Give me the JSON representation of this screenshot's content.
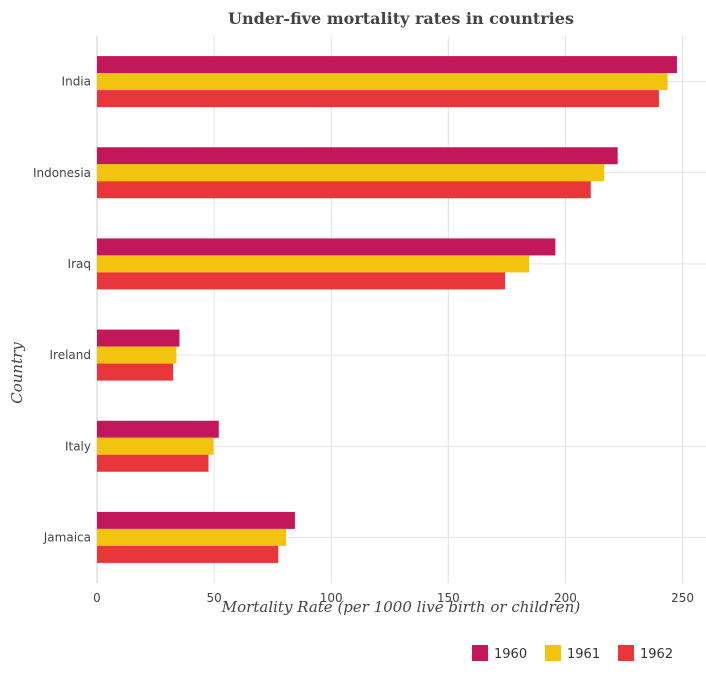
{
  "chart_data": {
    "type": "bar",
    "orientation": "horizontal",
    "title": "Under-five mortality rates in countries",
    "xlabel": "Mortality Rate (per 1000 live birth or children)",
    "ylabel": "Country",
    "xlim": [
      0,
      260
    ],
    "xticks": [
      "0",
      "50",
      "100",
      "150",
      "200",
      "250"
    ],
    "grid": true,
    "legend_position": "bottom-right",
    "categories": [
      "India",
      "Indonesia",
      "Iraq",
      "Ireland",
      "Italy",
      "Jamaica"
    ],
    "series": [
      {
        "name": "1960",
        "color": "#c2185b",
        "values": [
          247.6,
          222.3,
          195.7,
          35.2,
          52.0,
          84.5
        ]
      },
      {
        "name": "1961",
        "color": "#f2c40f",
        "values": [
          243.6,
          216.5,
          184.5,
          33.9,
          49.7,
          80.7
        ]
      },
      {
        "name": "1962",
        "color": "#e8363a",
        "values": [
          239.9,
          210.8,
          174.2,
          32.5,
          47.6,
          77.4
        ]
      }
    ]
  }
}
